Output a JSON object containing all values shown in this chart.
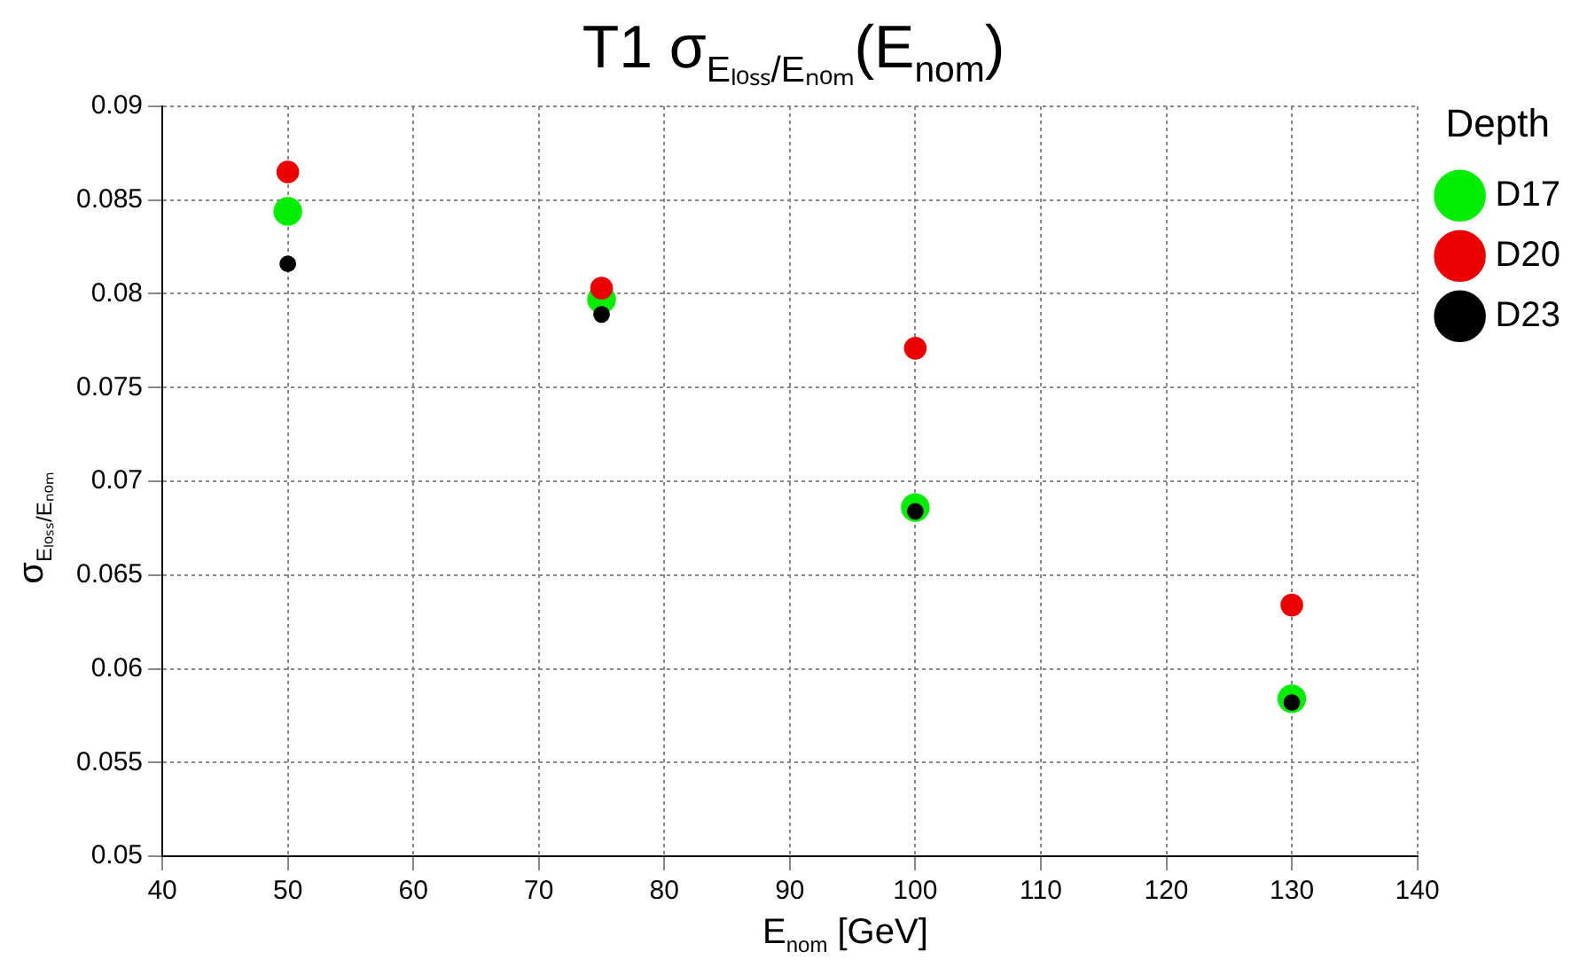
{
  "chart_data": {
    "type": "scatter",
    "title": "T1 σ$_{Eₗₒₛₛ/Eₙₒₘ}$(E$_{nom}$)",
    "xlabel": "E$_{nom}$ [GeV]",
    "ylabel": "σ$_{Eₗₒₛₛ/Eₙₒₘ}$",
    "legend_title": "Depth",
    "x": [
      50,
      75,
      100,
      130
    ],
    "series": [
      {
        "name": "D17",
        "color": "#00ee00",
        "values": [
          0.0844,
          0.0797,
          0.0686,
          0.0584
        ]
      },
      {
        "name": "D20",
        "color": "#ee0000",
        "values": [
          0.0865,
          0.0803,
          0.0771,
          0.0634
        ]
      },
      {
        "name": "D23",
        "color": "#000000",
        "values": [
          0.0816,
          0.0789,
          0.0684,
          0.0582
        ]
      }
    ],
    "xlim": [
      40,
      140
    ],
    "xticks": [
      40,
      50,
      60,
      70,
      80,
      90,
      100,
      110,
      120,
      130,
      140
    ],
    "ylim": [
      0.05,
      0.09
    ],
    "yticks": [
      0.05,
      0.055,
      0.06,
      0.065,
      0.07,
      0.075,
      0.08,
      0.085,
      0.09
    ],
    "grid": true,
    "legend": "top right",
    "marker": "circle"
  }
}
